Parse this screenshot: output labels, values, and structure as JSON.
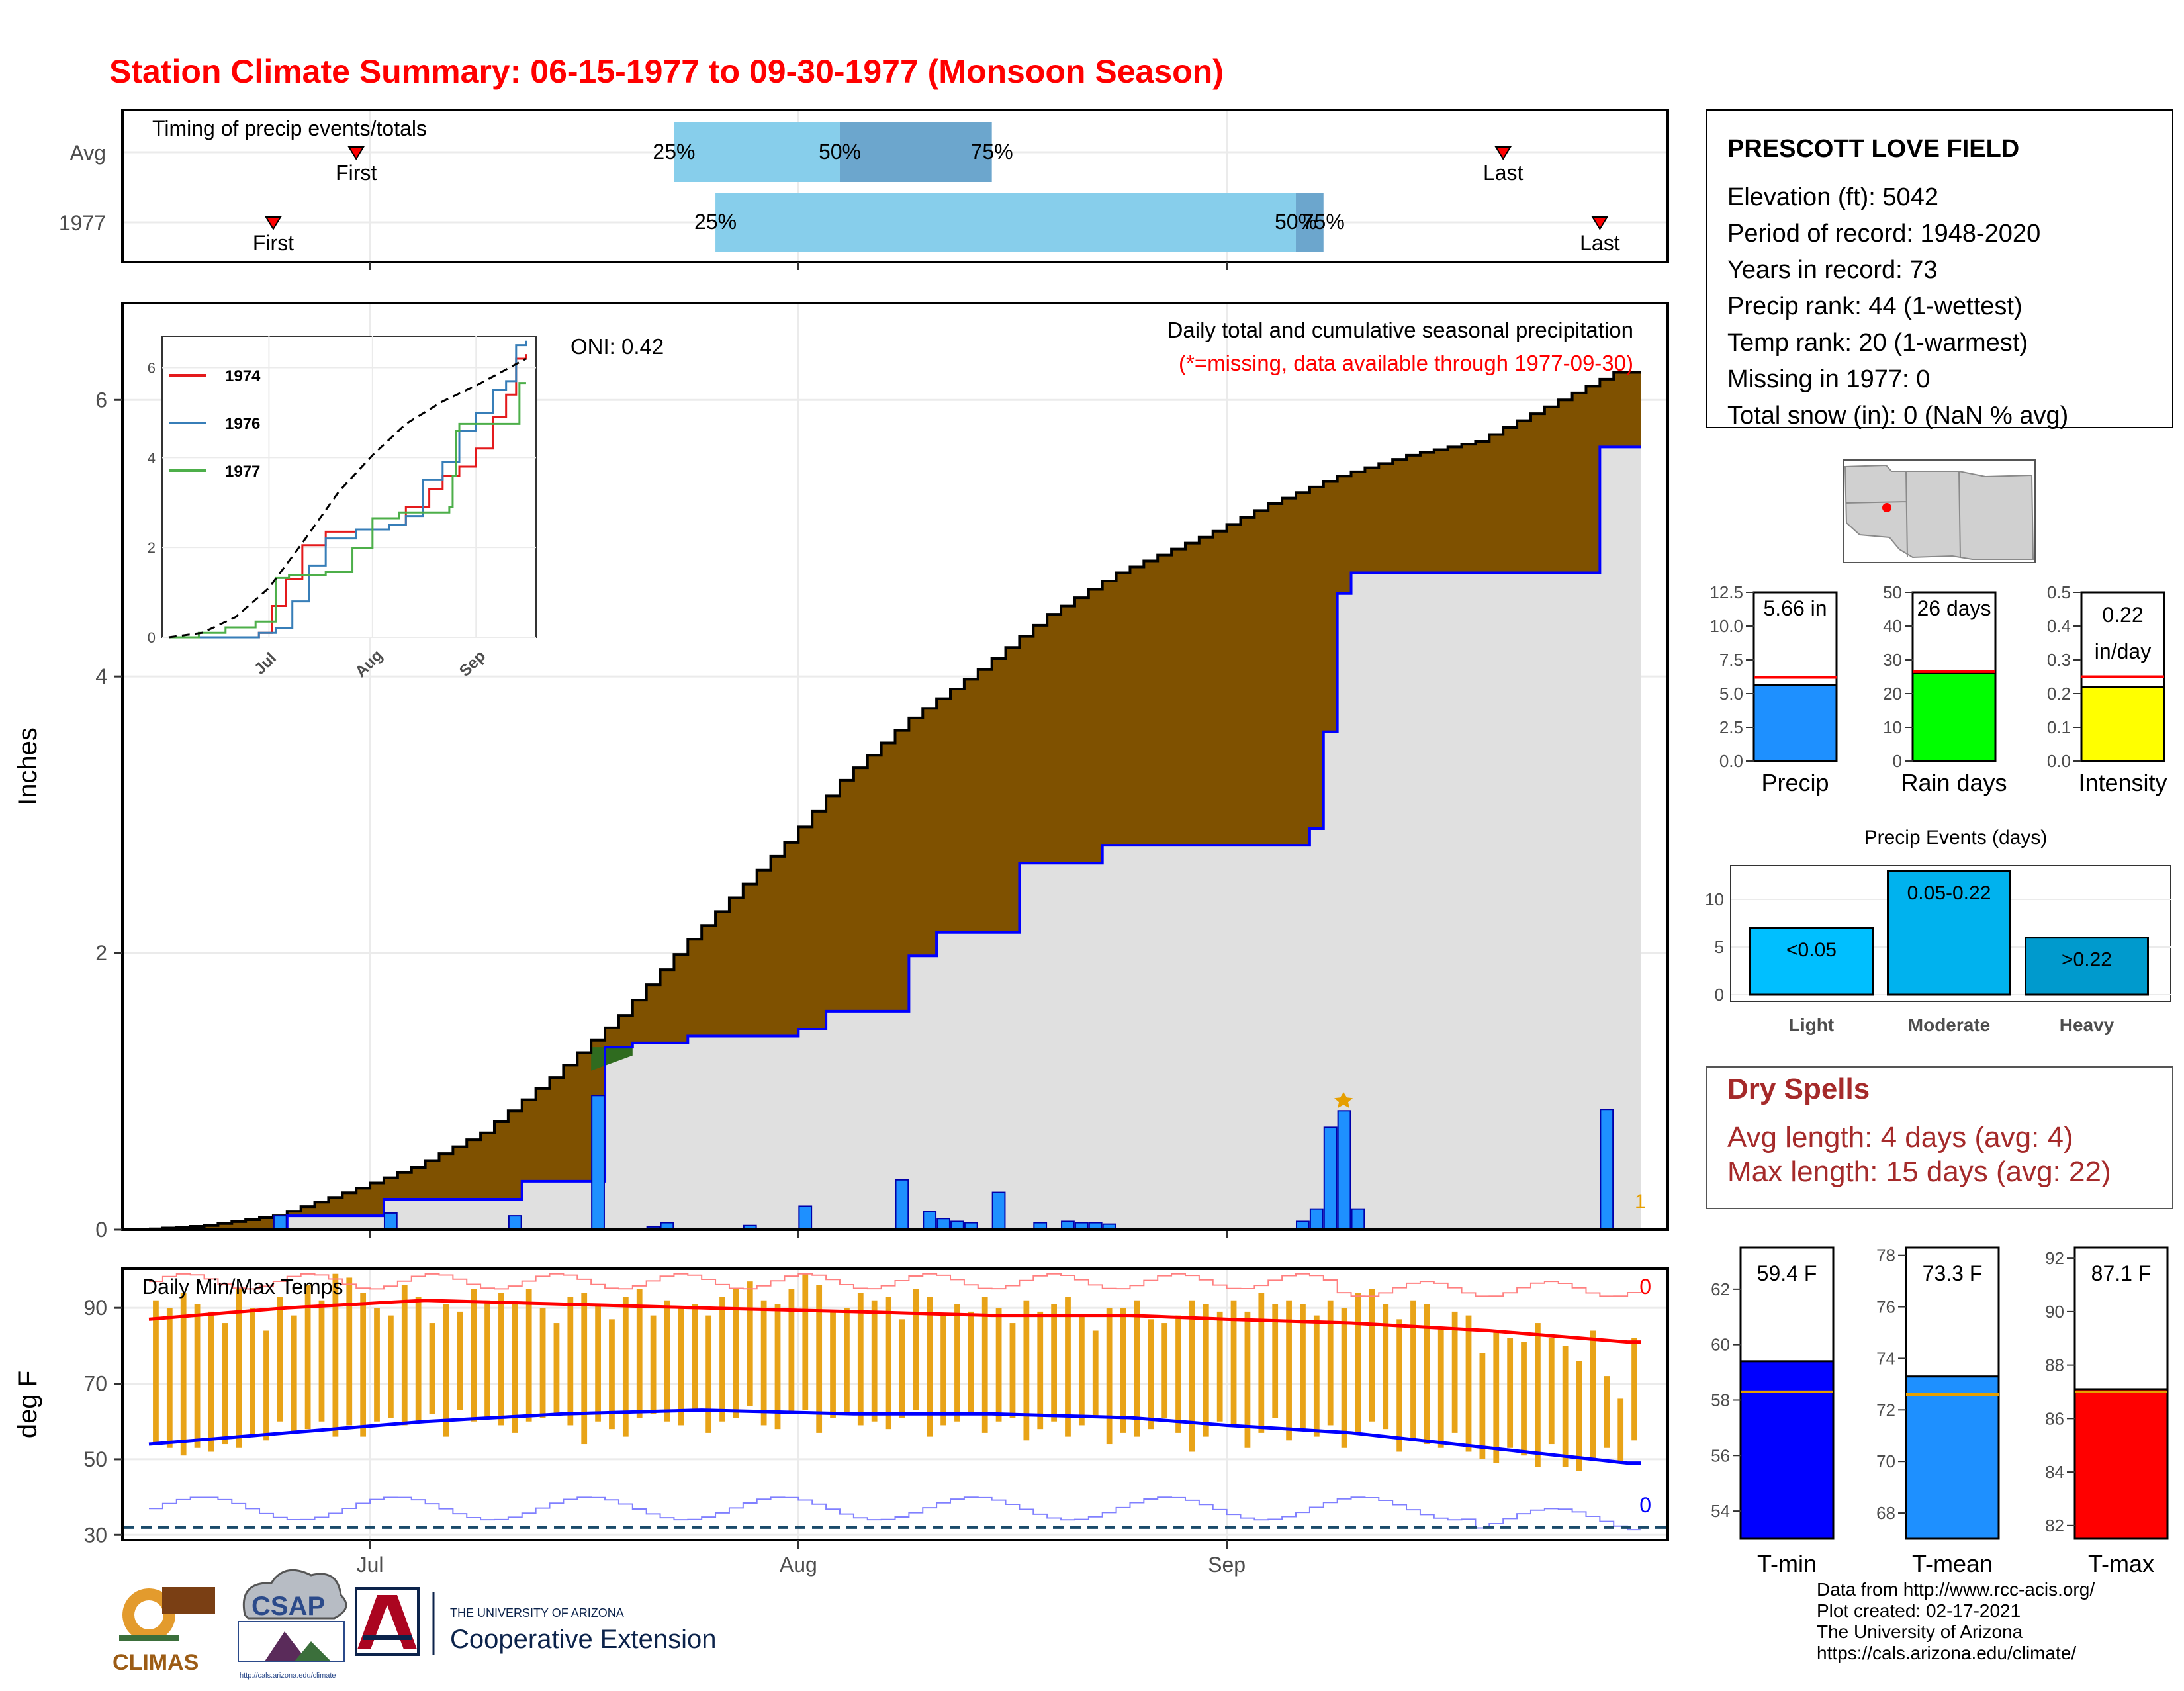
{
  "title": "Station Climate Summary: 06-15-1977 to 09-30-1977 (Monsoon Season)",
  "colors": {
    "title": "#ff0000",
    "brown": "#7f5100",
    "q_light": "#87ceeb",
    "q_dark": "#6ca6cd",
    "bar_blue": "#1e90ff",
    "rain_green": "#00ff00",
    "intensity_yellow": "#ffff00",
    "event_light": "#00bfff",
    "event_mod": "#00b2ee",
    "event_heavy": "#009acd",
    "temp_bar": "#e8a317",
    "dry_red": "#a52a2a"
  },
  "timing": {
    "title": "Timing of precip events/totals",
    "rows": [
      "Avg",
      "1977"
    ],
    "avg": {
      "first_label": "First",
      "last_label": "Last",
      "p25": "25%",
      "p50": "50%",
      "p75": "75%",
      "first": "06-30",
      "p25_date": "07-23",
      "p50_date": "08-04",
      "p75_date": "08-15",
      "last": "09-21"
    },
    "y1977": {
      "first_label": "First",
      "last_label": "Last",
      "p25": "25%",
      "p50": "50%",
      "p75": "75%",
      "first": "06-24",
      "p25_date": "07-26",
      "p50_date": "09-06",
      "p75_date": "09-08",
      "last": "09-28"
    }
  },
  "precip": {
    "ylabel": "Inches",
    "header": "Daily total and cumulative seasonal precipitation",
    "missing_note": "(*=missing, data available through 1977-09-30)",
    "oni": "ONI: 0.42",
    "corner_count": "1",
    "yticks": [
      "0",
      "2",
      "4",
      "6"
    ],
    "xticks": [
      "Jul",
      "Aug",
      "Sep"
    ]
  },
  "inset": {
    "legend": [
      "1974",
      "1976",
      "1977"
    ],
    "yticks": [
      "0",
      "2",
      "4",
      "6"
    ],
    "xticks": [
      "Jul",
      "Aug",
      "Sep"
    ]
  },
  "temps": {
    "title": "Daily Min/Max Temps",
    "ylabel": "deg F",
    "yticks": [
      "30",
      "50",
      "70",
      "90"
    ],
    "xticks": [
      "Jul",
      "Aug",
      "Sep"
    ],
    "max_count": "0",
    "min_count": "0"
  },
  "station": {
    "name": "PRESCOTT LOVE FIELD",
    "lines": [
      "Elevation (ft): 5042",
      "Period of record: 1948-2020",
      "Years in record: 73",
      "Precip rank: 44 (1-wettest)",
      "Temp rank: 20 (1-warmest)",
      "Missing in 1977: 0",
      "Total snow (in): 0 (NaN % avg)"
    ]
  },
  "summary_bars": [
    {
      "label": "Precip",
      "value_text": "5.66 in",
      "value": 5.66,
      "avg": 6.2,
      "ymax": 12.5,
      "yticks": [
        "0.0",
        "2.5",
        "5.0",
        "7.5",
        "10.0",
        "12.5"
      ],
      "tick_vals": [
        0,
        2.5,
        5,
        7.5,
        10,
        12.5
      ]
    },
    {
      "label": "Rain days",
      "value_text": "26 days",
      "value": 26,
      "avg": 26.5,
      "ymax": 50,
      "yticks": [
        "0",
        "10",
        "20",
        "30",
        "40",
        "50"
      ],
      "tick_vals": [
        0,
        10,
        20,
        30,
        40,
        50
      ]
    },
    {
      "label": "Intensity",
      "value_text": "0.22",
      "value_text2": "in/day",
      "value": 0.22,
      "avg": 0.25,
      "ymax": 0.5,
      "yticks": [
        "0.0",
        "0.1",
        "0.2",
        "0.3",
        "0.4",
        "0.5"
      ],
      "tick_vals": [
        0,
        0.1,
        0.2,
        0.3,
        0.4,
        0.5
      ]
    }
  ],
  "events": {
    "title": "Precip Events (days)",
    "categories": [
      "Light",
      "Moderate",
      "Heavy"
    ],
    "bar_labels": [
      "<0.05",
      "0.05-0.22",
      ">0.22"
    ],
    "values": [
      7,
      13,
      6
    ],
    "yticks": [
      "0",
      "5",
      "10"
    ]
  },
  "dry_spells": {
    "title": "Dry Spells",
    "avg_line": "Avg length: 4 days (avg: 4)",
    "max_line": "Max length: 15 days (avg: 22)"
  },
  "temp_bars": [
    {
      "label": "T-min",
      "value_text": "59.4 F",
      "value": 59.4,
      "avg": 58.3,
      "ymin": 53,
      "ymax": 63.5,
      "yticks": [
        "54",
        "56",
        "58",
        "60",
        "62"
      ],
      "tick_vals": [
        54,
        56,
        58,
        60,
        62
      ]
    },
    {
      "label": "T-mean",
      "value_text": "73.3 F",
      "value": 73.3,
      "avg": 72.6,
      "ymin": 67,
      "ymax": 78.3,
      "yticks": [
        "68",
        "70",
        "72",
        "74",
        "76",
        "78"
      ],
      "tick_vals": [
        68,
        70,
        72,
        74,
        76,
        78
      ]
    },
    {
      "label": "T-max",
      "value_text": "87.1 F",
      "value": 87.1,
      "avg": 87.0,
      "ymin": 81.5,
      "ymax": 92.4,
      "yticks": [
        "82",
        "84",
        "86",
        "88",
        "90",
        "92"
      ],
      "tick_vals": [
        82,
        84,
        86,
        88,
        90,
        92
      ]
    }
  ],
  "footer": {
    "lines": [
      "Data from http://www.rcc-acis.org/",
      "Plot created: 02-17-2021",
      "The University of Arizona",
      "https://cals.arizona.edu/climate/"
    ]
  },
  "logos": {
    "climas": "CLIMAS",
    "csap": "CSAP",
    "csap_url": "http://cals.arizona.edu/climate",
    "ua_top": "THE UNIVERSITY OF ARIZONA",
    "ua_bottom": "Cooperative Extension"
  },
  "chart_data": [
    {
      "type": "line",
      "title": "Daily total and cumulative seasonal precipitation",
      "ylabel": "Inches",
      "ylim": [
        0,
        6.7
      ],
      "xlim": [
        "06-15",
        "09-30"
      ],
      "series": [
        {
          "name": "cumulative-avg",
          "x": [
            "06-15",
            "06-20",
            "06-25",
            "07-01",
            "07-05",
            "07-10",
            "07-15",
            "07-20",
            "07-25",
            "08-01",
            "08-05",
            "08-10",
            "08-15",
            "08-20",
            "08-25",
            "09-01",
            "09-05",
            "09-10",
            "09-15",
            "09-20",
            "09-25",
            "09-30"
          ],
          "values": [
            0.0,
            0.03,
            0.1,
            0.3,
            0.45,
            0.7,
            1.1,
            1.55,
            2.1,
            2.8,
            3.25,
            3.7,
            4.05,
            4.45,
            4.75,
            5.05,
            5.25,
            5.45,
            5.6,
            5.7,
            5.95,
            6.2
          ]
        },
        {
          "name": "cumulative-1977",
          "x": [
            "06-15",
            "06-24",
            "06-25",
            "07-01",
            "07-02",
            "07-11",
            "07-12",
            "07-17",
            "07-18",
            "07-20",
            "07-24",
            "08-01",
            "08-03",
            "08-09",
            "08-11",
            "08-17",
            "08-23",
            "09-06",
            "09-07",
            "09-08",
            "09-09",
            "09-10",
            "09-28",
            "09-30"
          ],
          "values": [
            0.0,
            0.0,
            0.1,
            0.1,
            0.22,
            0.22,
            0.35,
            0.35,
            1.32,
            1.35,
            1.4,
            1.45,
            1.58,
            1.98,
            2.15,
            2.65,
            2.78,
            2.78,
            2.9,
            3.6,
            4.6,
            4.75,
            5.66,
            5.66
          ]
        },
        {
          "name": "daily-1977",
          "x": [
            "06-24",
            "07-02",
            "07-11",
            "07-17",
            "07-21",
            "07-22",
            "07-28",
            "08-01",
            "08-08",
            "08-10",
            "08-11",
            "08-12",
            "08-13",
            "08-15",
            "08-18",
            "08-20",
            "08-21",
            "08-22",
            "08-23",
            "09-06",
            "09-07",
            "09-08",
            "09-09",
            "09-10",
            "09-28"
          ],
          "values": [
            0.1,
            0.12,
            0.1,
            0.97,
            0.02,
            0.05,
            0.03,
            0.17,
            0.36,
            0.13,
            0.08,
            0.06,
            0.05,
            0.27,
            0.05,
            0.06,
            0.05,
            0.05,
            0.04,
            0.06,
            0.15,
            0.74,
            0.86,
            0.15,
            0.87
          ]
        }
      ]
    },
    {
      "type": "line",
      "title": "",
      "ylim": [
        0,
        6.6
      ],
      "legend": "top-left",
      "series": [
        {
          "name": "1974",
          "x": [
            "06-15",
            "07-05",
            "07-12",
            "07-16",
            "07-20",
            "07-25",
            "08-01",
            "08-10",
            "08-20",
            "08-25",
            "09-01",
            "09-05",
            "09-10",
            "09-15",
            "09-20",
            "09-24",
            "09-27",
            "09-30"
          ],
          "values": [
            0,
            0,
            0.1,
            0.7,
            1.3,
            2.05,
            2.35,
            2.4,
            2.5,
            2.9,
            3.3,
            3.6,
            3.8,
            4.2,
            4.9,
            5.4,
            6.2,
            6.3
          ]
        },
        {
          "name": "1976",
          "x": [
            "06-15",
            "07-05",
            "07-12",
            "07-17",
            "07-22",
            "07-27",
            "08-01",
            "08-10",
            "08-20",
            "08-25",
            "08-30",
            "09-05",
            "09-10",
            "09-15",
            "09-20",
            "09-24",
            "09-27",
            "09-30"
          ],
          "values": [
            0,
            0,
            0.1,
            0.2,
            0.8,
            1.6,
            2.2,
            2.4,
            2.5,
            2.7,
            3.5,
            3.9,
            4.6,
            5.0,
            5.5,
            5.7,
            6.5,
            6.6
          ]
        },
        {
          "name": "1977",
          "x": [
            "06-15",
            "06-24",
            "07-02",
            "07-11",
            "07-17",
            "07-21",
            "08-01",
            "08-09",
            "08-15",
            "08-23",
            "09-07",
            "09-08",
            "09-09",
            "09-10",
            "09-28",
            "09-30"
          ],
          "values": [
            0,
            0.1,
            0.22,
            0.35,
            1.32,
            1.38,
            1.45,
            1.98,
            2.65,
            2.78,
            2.9,
            3.6,
            4.6,
            4.75,
            5.66,
            5.66
          ]
        },
        {
          "name": "avg",
          "x": [
            "06-15",
            "06-25",
            "07-05",
            "07-15",
            "07-25",
            "08-05",
            "08-15",
            "08-25",
            "09-05",
            "09-15",
            "09-25",
            "09-30"
          ],
          "values": [
            0,
            0.1,
            0.45,
            1.1,
            2.1,
            3.25,
            4.05,
            4.75,
            5.25,
            5.6,
            6.0,
            6.2
          ]
        }
      ]
    },
    {
      "type": "bar",
      "title": "Daily Min/Max Temps",
      "ylabel": "deg F",
      "ylim": [
        29,
        100
      ],
      "series": [
        {
          "name": "daily-max",
          "x_start": "06-15",
          "values": [
            92,
            90,
            94,
            91,
            89,
            86,
            95,
            90,
            84,
            93,
            88,
            96,
            92,
            99,
            98,
            94,
            90,
            88,
            96,
            93,
            86,
            91,
            89,
            95,
            92,
            94,
            91,
            95,
            90,
            86,
            93,
            94,
            91,
            87,
            93,
            95,
            88,
            92,
            90,
            91,
            88,
            93,
            95,
            97,
            92,
            91,
            95,
            99,
            96,
            89,
            90,
            94,
            92,
            93,
            87,
            95,
            93,
            88,
            91,
            89,
            93,
            90,
            86,
            92,
            89,
            91,
            93,
            88,
            84,
            90,
            90,
            92,
            87,
            86,
            88,
            92,
            91,
            89,
            92,
            89,
            94,
            91,
            92,
            91,
            88,
            92,
            90,
            94,
            95,
            91,
            87,
            92,
            91,
            85,
            89,
            88,
            78,
            84,
            82,
            81,
            86,
            82,
            80,
            76,
            84,
            72,
            66,
            82,
            84
          ]
        },
        {
          "name": "daily-min",
          "x_start": "06-15",
          "values": [
            54,
            53,
            51,
            53,
            52,
            54,
            53,
            56,
            55,
            60,
            57,
            58,
            60,
            56,
            59,
            56,
            60,
            61,
            59,
            60,
            62,
            56,
            63,
            60,
            61,
            59,
            57,
            60,
            61,
            62,
            59,
            54,
            60,
            58,
            56,
            61,
            62,
            60,
            59,
            63,
            57,
            60,
            61,
            64,
            59,
            58,
            62,
            63,
            57,
            61,
            62,
            59,
            60,
            58,
            61,
            63,
            56,
            59,
            60,
            62,
            57,
            60,
            61,
            55,
            58,
            60,
            56,
            59,
            61,
            54,
            57,
            56,
            58,
            61,
            57,
            52,
            56,
            60,
            59,
            53,
            57,
            61,
            55,
            58,
            56,
            59,
            53,
            57,
            60,
            58,
            52,
            55,
            54,
            53,
            57,
            52,
            50,
            49,
            53,
            51,
            48,
            54,
            48,
            47,
            50,
            53,
            49,
            55,
            48
          ]
        },
        {
          "name": "avg-max",
          "x": [
            "06-15",
            "06-25",
            "07-05",
            "07-15",
            "07-25",
            "08-05",
            "08-15",
            "08-25",
            "09-01",
            "09-10",
            "09-20",
            "09-30"
          ],
          "values": [
            87,
            90,
            92,
            91,
            90,
            89,
            88,
            88,
            87,
            86,
            84,
            81
          ]
        },
        {
          "name": "avg-min",
          "x": [
            "06-15",
            "06-25",
            "07-05",
            "07-15",
            "07-25",
            "08-05",
            "08-15",
            "08-25",
            "09-01",
            "09-10",
            "09-20",
            "09-30"
          ],
          "values": [
            54,
            57,
            60,
            62,
            63,
            62,
            62,
            61,
            59,
            57,
            53,
            49
          ]
        }
      ]
    }
  ]
}
